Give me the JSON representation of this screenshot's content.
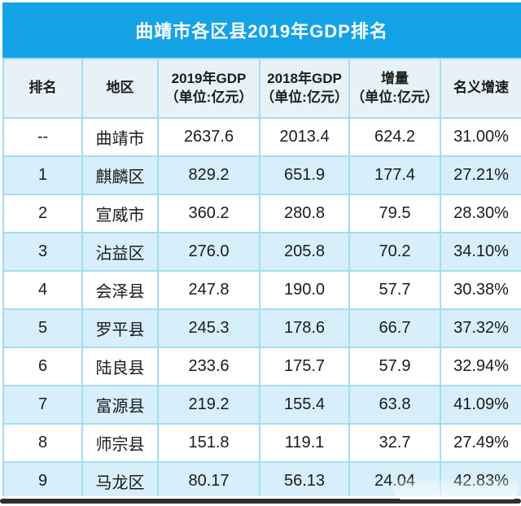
{
  "title": "曲靖市各区县2019年GDP排名",
  "colors": {
    "title_bar_blue": "#14A3E6",
    "border_cyan": "#A4DDF1",
    "row_alt_blue": "#D7EFFB",
    "header_bg": "#E7F2F8",
    "title_text": "#FFFFFF",
    "body_text": "#1B1B1B",
    "bottom_bar": "#2F2F2F"
  },
  "chart_data": {
    "type": "table",
    "title": "曲靖市各区县2019年GDP排名",
    "legend_position": "none",
    "grid": "full-cell-borders",
    "columns": [
      {
        "label": "排名",
        "unit": ""
      },
      {
        "label": "地区",
        "unit": ""
      },
      {
        "label": "2019年GDP",
        "unit": "（单位:亿元）"
      },
      {
        "label": "2018年GDP",
        "unit": "（单位:亿元）"
      },
      {
        "label": "增量",
        "unit": "（单位:亿元）"
      },
      {
        "label": "名义增速",
        "unit": ""
      }
    ],
    "rows": [
      [
        "--",
        "曲靖市",
        "2637.6",
        "2013.4",
        "624.2",
        "31.00%"
      ],
      [
        "1",
        "麒麟区",
        "829.2",
        "651.9",
        "177.4",
        "27.21%"
      ],
      [
        "2",
        "宣威市",
        "360.2",
        "280.8",
        "79.5",
        "28.30%"
      ],
      [
        "3",
        "沾益区",
        "276.0",
        "205.8",
        "70.2",
        "34.10%"
      ],
      [
        "4",
        "会泽县",
        "247.8",
        "190.0",
        "57.7",
        "30.38%"
      ],
      [
        "5",
        "罗平县",
        "245.3",
        "178.6",
        "66.7",
        "37.32%"
      ],
      [
        "6",
        "陆良县",
        "233.6",
        "175.7",
        "57.9",
        "32.94%"
      ],
      [
        "7",
        "富源县",
        "219.2",
        "155.4",
        "63.8",
        "41.09%"
      ],
      [
        "8",
        "师宗县",
        "151.8",
        "119.1",
        "32.7",
        "27.49%"
      ],
      [
        "9",
        "马龙区",
        "80.17",
        "56.13",
        "24.04",
        "42.83%"
      ]
    ]
  }
}
